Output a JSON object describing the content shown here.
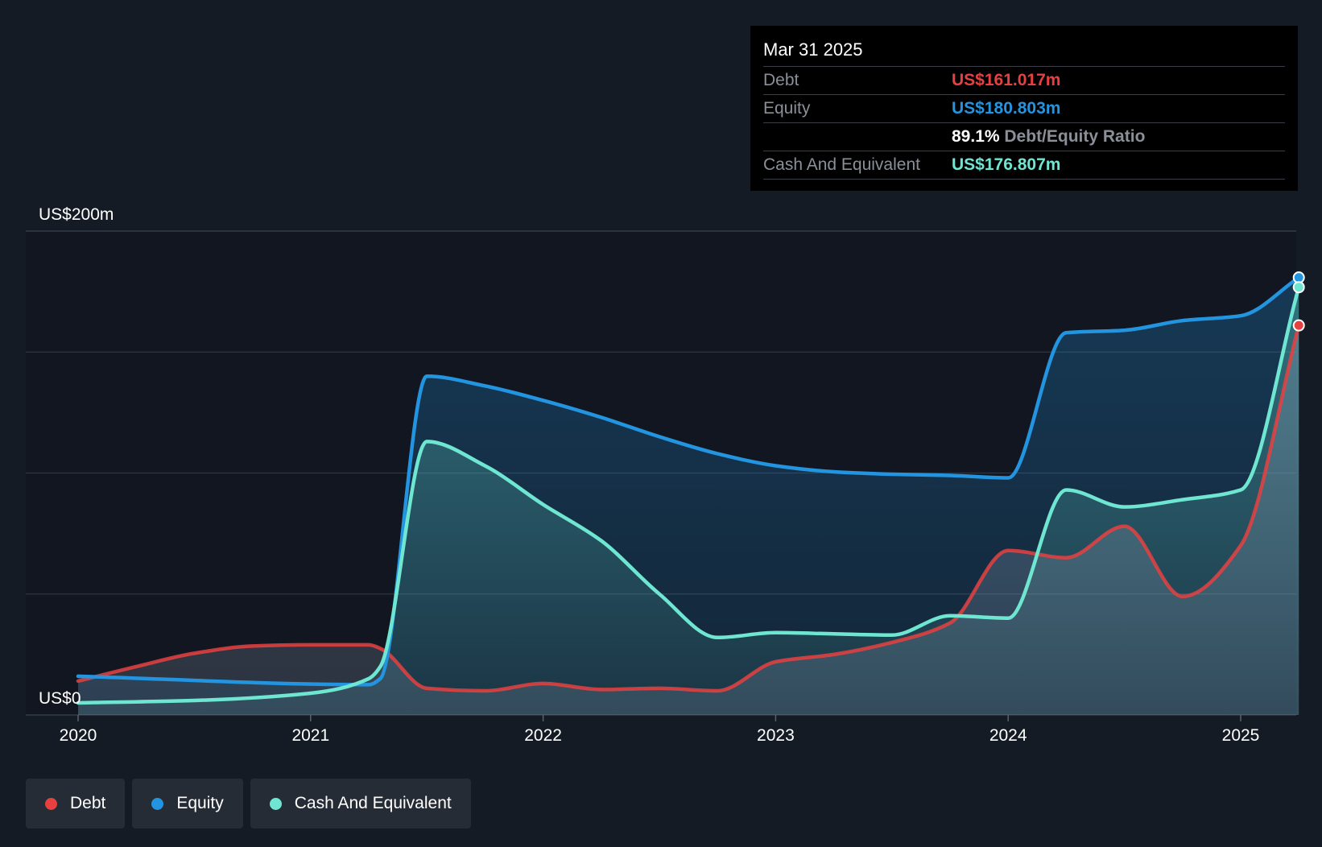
{
  "colors": {
    "background": "#151b24",
    "plot_background": "#111620",
    "debt": "#e64141",
    "equity": "#2394df",
    "cash": "#6ee6d2",
    "grid": "#2e3540",
    "text": "#ffffff",
    "muted": "#8a8f98"
  },
  "tooltip": {
    "date": "Mar 31 2025",
    "debt_label": "Debt",
    "debt_value": "US$161.017m",
    "equity_label": "Equity",
    "equity_value": "US$180.803m",
    "ratio_value": "89.1%",
    "ratio_label": "Debt/Equity Ratio",
    "cash_label": "Cash And Equivalent",
    "cash_value": "US$176.807m"
  },
  "legend": [
    {
      "label": "Debt",
      "color": "#e64141"
    },
    {
      "label": "Equity",
      "color": "#2394df"
    },
    {
      "label": "Cash And Equivalent",
      "color": "#6ee6d2"
    }
  ],
  "chart_data": {
    "type": "area",
    "title": "",
    "xlabel": "",
    "ylabel": "",
    "ylim": [
      0,
      200
    ],
    "xlim": [
      2019.78,
      2025.25
    ],
    "y_tick_labels": [
      {
        "value": 200,
        "label": "US$200m"
      },
      {
        "value": 0,
        "label": "US$0"
      }
    ],
    "grid_values": [
      0,
      50,
      100,
      150,
      200
    ],
    "x_ticks": [
      {
        "value": 2020,
        "label": "2020"
      },
      {
        "value": 2021,
        "label": "2021"
      },
      {
        "value": 2022,
        "label": "2022"
      },
      {
        "value": 2023,
        "label": "2023"
      },
      {
        "value": 2024,
        "label": "2024"
      },
      {
        "value": 2025,
        "label": "2025"
      }
    ],
    "series": [
      {
        "name": "Debt",
        "x": [
          2020.0,
          2020.25,
          2020.5,
          2020.75,
          2021.0,
          2021.25,
          2021.3,
          2021.5,
          2021.75,
          2022.0,
          2022.25,
          2022.5,
          2022.75,
          2023.0,
          2023.25,
          2023.5,
          2023.75,
          2024.0,
          2024.25,
          2024.5,
          2024.75,
          2025.0,
          2025.25
        ],
        "values": [
          14,
          20,
          25.5,
          28.5,
          29,
          29,
          27.5,
          11,
          10,
          13,
          10.5,
          11,
          10,
          22,
          25,
          30,
          38,
          68,
          65,
          78,
          49,
          70,
          161.017
        ]
      },
      {
        "name": "Equity",
        "x": [
          2020.0,
          2021.25,
          2021.3,
          2021.5,
          2021.75,
          2022.0,
          2022.25,
          2022.5,
          2022.75,
          2023.0,
          2023.25,
          2023.5,
          2023.75,
          2024.0,
          2024.25,
          2024.5,
          2024.75,
          2025.0,
          2025.25
        ],
        "values": [
          16,
          12.5,
          15,
          140,
          136,
          130,
          123,
          115,
          108,
          103,
          100.5,
          99.5,
          99,
          98,
          158,
          159,
          163,
          165,
          180.803
        ]
      },
      {
        "name": "Cash And Equivalent",
        "x": [
          2020.0,
          2020.5,
          2021.0,
          2021.25,
          2021.3,
          2021.5,
          2021.75,
          2022.0,
          2022.25,
          2022.5,
          2022.75,
          2023.0,
          2023.25,
          2023.5,
          2023.75,
          2024.0,
          2024.25,
          2024.5,
          2024.75,
          2025.0,
          2025.25
        ],
        "values": [
          5,
          6,
          9,
          15,
          20,
          113,
          103,
          87,
          72,
          50,
          32,
          34,
          33.5,
          33,
          41,
          40,
          93,
          86,
          89,
          93,
          176.807
        ]
      }
    ]
  }
}
